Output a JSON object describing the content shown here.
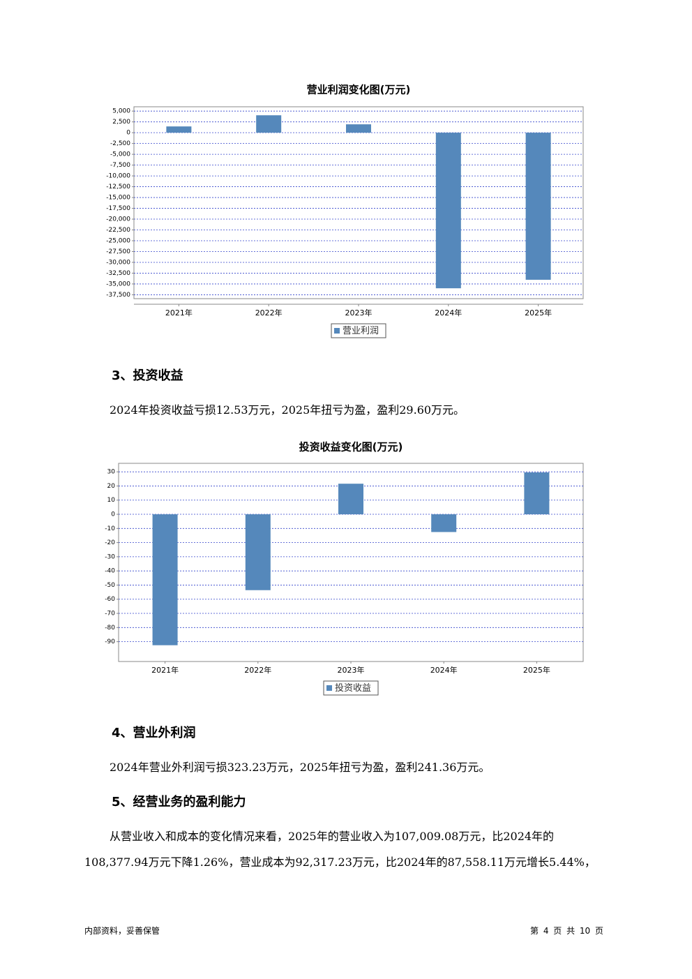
{
  "chart_data": [
    {
      "type": "bar",
      "title": "营业利润变化图(万元)",
      "categories": [
        "2021年",
        "2022年",
        "2023年",
        "2024年",
        "2025年"
      ],
      "series": [
        {
          "name": "营业利润",
          "color": "#5588bb",
          "values": [
            1450,
            4030,
            1940,
            -36000,
            -34030
          ]
        }
      ],
      "ylim": [
        -38400,
        6000
      ],
      "yticks": [
        {
          "value": 5000,
          "label": "5,000"
        },
        {
          "value": 2500,
          "label": "2,500"
        },
        0,
        {
          "value": -2500,
          "label": "-2,500"
        },
        {
          "value": -5000,
          "label": "-5,000"
        },
        {
          "value": -7500,
          "label": "-7,500"
        },
        {
          "value": -10000,
          "label": "-10,000"
        },
        {
          "value": -12500,
          "label": "-12,500"
        },
        {
          "value": -15000,
          "label": "-15,000"
        },
        {
          "value": -17500,
          "label": "-17,500"
        },
        {
          "value": -20000,
          "label": "-20,000"
        },
        {
          "value": -22500,
          "label": "-22,500"
        },
        {
          "value": -25000,
          "label": "-25,000"
        },
        {
          "value": -27500,
          "label": "-27,500"
        },
        {
          "value": -30000,
          "label": "-30,000"
        },
        {
          "value": -32500,
          "label": "-32,500"
        },
        {
          "value": -35000,
          "label": "-35,000"
        },
        {
          "value": -37500,
          "label": "-37,500"
        }
      ],
      "grid": true
    },
    {
      "type": "bar",
      "title": "投资收益变化图(万元)",
      "categories": [
        "2021年",
        "2022年",
        "2023年",
        "2024年",
        "2025年"
      ],
      "series": [
        {
          "name": "投资收益",
          "color": "#5588bb",
          "values": [
            -92.5,
            -53.6,
            21.6,
            -12.53,
            29.6
          ]
        }
      ],
      "ylim": [
        -104,
        36
      ],
      "yticks": [
        30,
        20,
        10,
        0,
        -10,
        -20,
        -30,
        -40,
        -50,
        -60,
        -70,
        -80,
        -90
      ],
      "grid": true
    }
  ],
  "sections": [
    {
      "heading": "3、投资收益",
      "paragraphs": [
        "2024年投资收益亏损12.53万元，2025年扭亏为盈，盈利29.60万元。"
      ]
    },
    {
      "heading": "4、营业外利润",
      "paragraphs": [
        "2024年营业外利润亏损323.23万元，2025年扭亏为盈，盈利241.36万元。"
      ]
    },
    {
      "heading": "5、经营业务的盈利能力",
      "paragraphs": [
        "从营业收入和成本的变化情况来看，2025年的营业收入为107,009.08万元，比2024年的",
        "108,377.94万元下降1.26%，营业成本为92,317.23万元，比2024年的87,558.11万元增长5.44%，"
      ]
    }
  ],
  "footer": {
    "left": "内部资料，妥善保管",
    "right": "第 4 页  共 10 页"
  }
}
